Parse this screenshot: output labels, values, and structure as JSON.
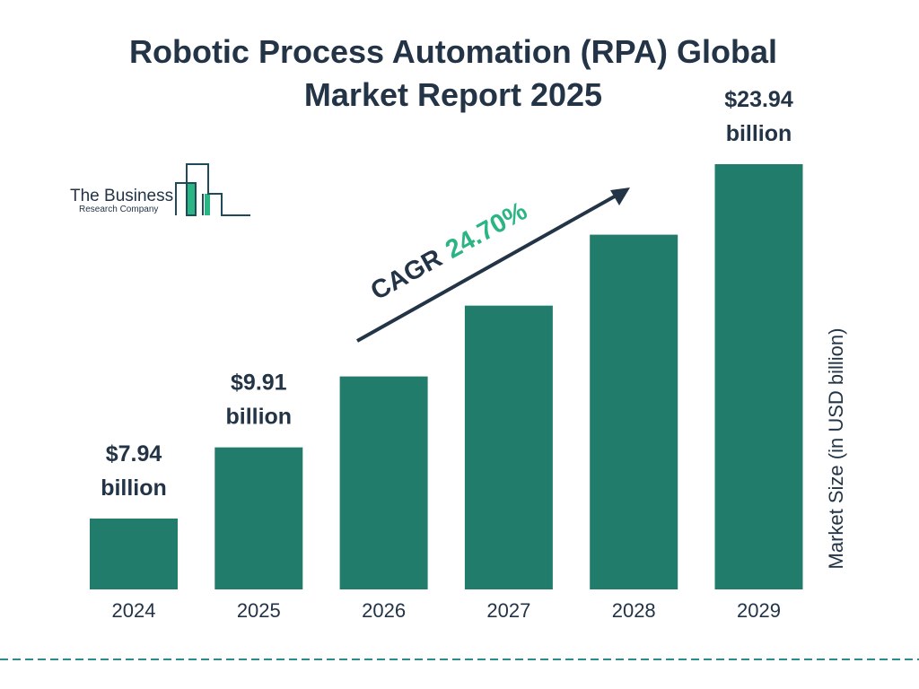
{
  "title_line1": "Robotic Process Automation (RPA) Global",
  "title_line2": "Market Report 2025",
  "logo": {
    "line1": "The Business",
    "line2": "Research Company"
  },
  "colors": {
    "bar": "#217c6b",
    "text": "#233447",
    "cagr": "#2bb583",
    "logo_accent": "#2bb583",
    "dashed_line": "#2a8c8c"
  },
  "chart_data": {
    "type": "bar",
    "categories": [
      "2024",
      "2025",
      "2026",
      "2027",
      "2028",
      "2029"
    ],
    "values": [
      7.94,
      9.91,
      12.36,
      15.41,
      19.22,
      23.94
    ],
    "data_labels": [
      {
        "index": 0,
        "value": "$7.94",
        "unit": "billion"
      },
      {
        "index": 1,
        "value": "$9.91",
        "unit": "billion"
      },
      {
        "index": 5,
        "value": "$23.94",
        "unit": "billion"
      }
    ],
    "ylabel": "Market Size (in USD billion)",
    "annotation": {
      "label": "CAGR",
      "value": "24.70%"
    },
    "grid": false,
    "y_scale": "log"
  }
}
